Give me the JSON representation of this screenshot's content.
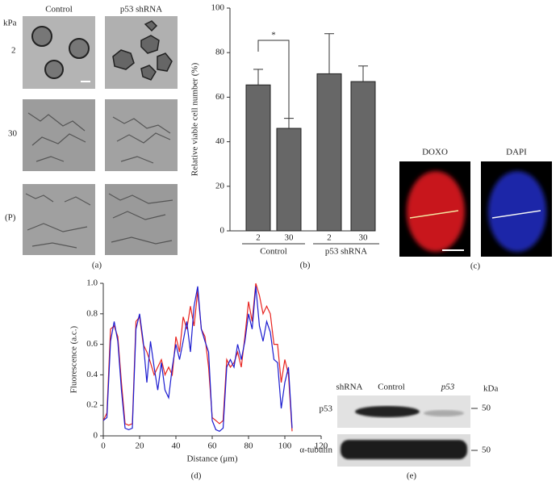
{
  "chart_data": [
    {
      "type": "bar",
      "ylabel": "Relative viable cell number (%)",
      "categories": [
        "2",
        "30",
        "2",
        "30"
      ],
      "groups": [
        "Control",
        "p53 shRNA"
      ],
      "values": [
        65.5,
        46,
        70.5,
        67
      ],
      "errors": [
        7,
        4.5,
        18,
        7
      ],
      "color": "#676767",
      "annotation": "*",
      "panel": "(b)",
      "ylim": [
        0,
        100
      ],
      "yticks": [
        0,
        20,
        40,
        60,
        80,
        100
      ]
    },
    {
      "type": "line",
      "xlabel": "Distance (μm)",
      "ylabel": "Fluorescence (a.c.)",
      "panel": "(d)",
      "x": [
        0,
        2,
        4,
        6,
        8,
        10,
        12,
        14,
        16,
        18,
        20,
        22,
        24,
        26,
        28,
        30,
        32,
        34,
        36,
        38,
        40,
        42,
        44,
        46,
        48,
        50,
        52,
        54,
        56,
        58,
        60,
        62,
        64,
        66,
        68,
        70,
        72,
        74,
        76,
        78,
        80,
        82,
        84,
        86,
        88,
        90,
        92,
        94,
        96,
        98,
        100,
        102,
        104
      ],
      "series": [
        {
          "color": "#e8231f",
          "values": [
            0.1,
            0.15,
            0.7,
            0.72,
            0.65,
            0.35,
            0.08,
            0.07,
            0.08,
            0.75,
            0.78,
            0.6,
            0.55,
            0.48,
            0.4,
            0.45,
            0.5,
            0.4,
            0.45,
            0.4,
            0.65,
            0.55,
            0.78,
            0.7,
            0.85,
            0.72,
            0.95,
            0.7,
            0.65,
            0.45,
            0.12,
            0.1,
            0.08,
            0.1,
            0.5,
            0.45,
            0.48,
            0.55,
            0.45,
            0.65,
            0.88,
            0.75,
            1.0,
            0.92,
            0.8,
            0.85,
            0.8,
            0.6,
            0.6,
            0.35,
            0.5,
            0.4,
            0.03
          ]
        },
        {
          "color": "#1b1bd0",
          "values": [
            0.1,
            0.12,
            0.62,
            0.75,
            0.62,
            0.3,
            0.05,
            0.04,
            0.05,
            0.7,
            0.8,
            0.62,
            0.35,
            0.62,
            0.45,
            0.3,
            0.48,
            0.3,
            0.25,
            0.45,
            0.6,
            0.5,
            0.62,
            0.75,
            0.55,
            0.85,
            0.98,
            0.7,
            0.62,
            0.55,
            0.1,
            0.04,
            0.03,
            0.05,
            0.45,
            0.5,
            0.45,
            0.6,
            0.5,
            0.62,
            0.8,
            0.7,
            0.98,
            0.72,
            0.62,
            0.75,
            0.68,
            0.5,
            0.48,
            0.18,
            0.35,
            0.45,
            0.05
          ]
        }
      ],
      "xlim": [
        0,
        120
      ],
      "xticks": [
        0,
        20,
        40,
        60,
        80,
        100,
        120
      ],
      "ylim": [
        0,
        1
      ],
      "yticks": [
        0,
        0.2,
        0.4,
        0.6,
        0.8,
        {
          "value": 1,
          "label": "1.0"
        }
      ]
    }
  ],
  "figure": {
    "panel_a": {
      "columns": [
        "Control",
        "p53 shRNA"
      ],
      "row_header": "kPa",
      "rows": [
        "2",
        "30",
        "(P)"
      ],
      "label": "(a)"
    },
    "panel_c": {
      "channels": [
        "DOXO",
        "DAPI"
      ],
      "label": "(c)"
    },
    "panel_e": {
      "row_header": "shRNA",
      "columns": [
        "Control",
        "p53"
      ],
      "unit": "kDa",
      "bands": [
        "p53",
        "α-tubulin"
      ],
      "sizes": [
        "50",
        "50"
      ],
      "label": "(e)"
    }
  }
}
